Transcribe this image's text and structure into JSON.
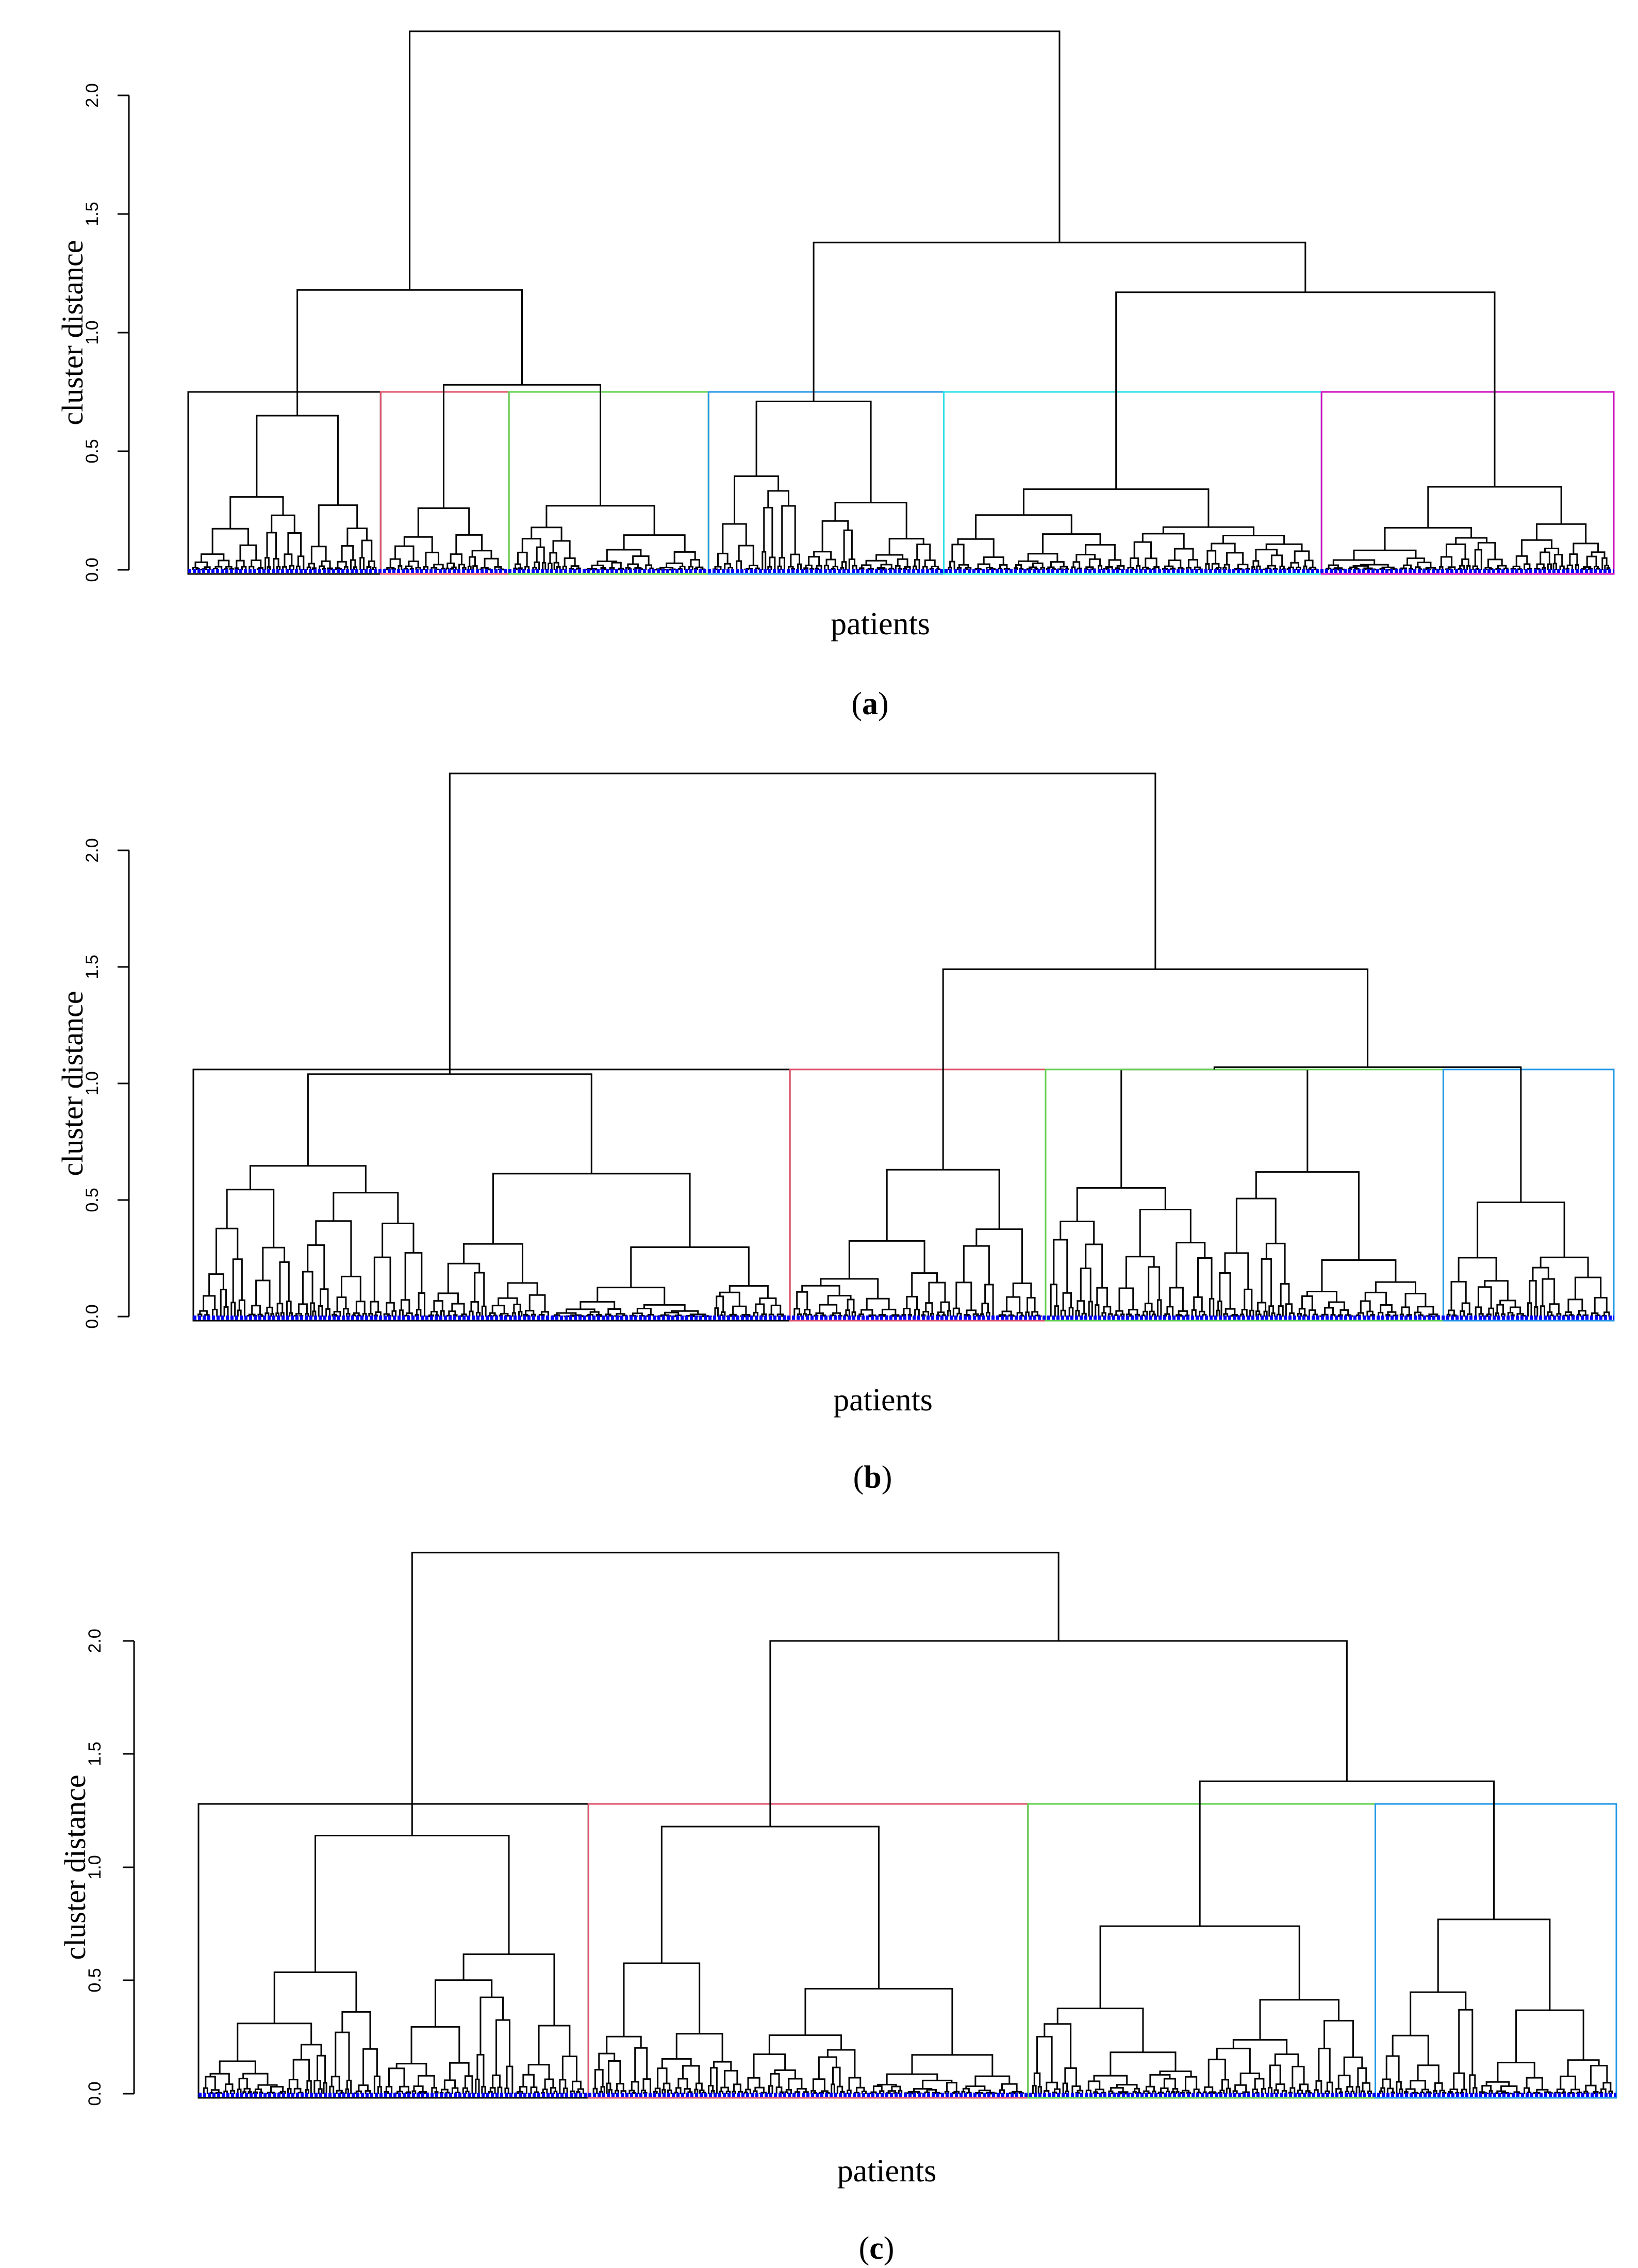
{
  "chart_data": [
    {
      "type": "dendrogram",
      "panel": "a",
      "caption_letter": "a",
      "xlabel": "patients",
      "ylabel": "cluster distance",
      "ylim": [
        0,
        2.0
      ],
      "y_ticks": [
        "0.0",
        "0.5",
        "1.0",
        "1.5",
        "2.0"
      ],
      "root_height": 2.27,
      "cut_height": 0.75,
      "upper_merges": [
        {
          "name": "root",
          "height": 2.27
        },
        {
          "name": "left-group",
          "height": 1.18
        },
        {
          "name": "right-group",
          "height": 1.38
        },
        {
          "name": "right-subgroup",
          "height": 1.17
        },
        {
          "name": "left-subgroup",
          "height": 0.78
        }
      ],
      "clusters": [
        {
          "name": "cluster-1",
          "color": "#000000",
          "width_fraction": 0.135,
          "subtree_height": 0.65
        },
        {
          "name": "cluster-2",
          "color": "#DF536B",
          "width_fraction": 0.09,
          "subtree_height": 0.26
        },
        {
          "name": "cluster-3",
          "color": "#61D04F",
          "width_fraction": 0.14,
          "subtree_height": 0.27
        },
        {
          "name": "cluster-4",
          "color": "#2297E6",
          "width_fraction": 0.165,
          "subtree_height": 0.71
        },
        {
          "name": "cluster-5",
          "color": "#28E2E5",
          "width_fraction": 0.265,
          "subtree_height": 0.34
        },
        {
          "name": "cluster-6",
          "color": "#CD0BBC",
          "width_fraction": 0.205,
          "subtree_height": 0.35
        }
      ]
    },
    {
      "type": "dendrogram",
      "panel": "b",
      "caption_letter": "b",
      "xlabel": "patients",
      "ylabel": "cluster distance",
      "ylim": [
        0,
        2.0
      ],
      "y_ticks": [
        "0.0",
        "0.5",
        "1.0",
        "1.5",
        "2.0"
      ],
      "root_height": 2.33,
      "cut_height": 1.06,
      "upper_merges": [
        {
          "name": "root",
          "height": 2.33
        },
        {
          "name": "right-group",
          "height": 1.49
        },
        {
          "name": "right-subgroup",
          "height": 1.07
        }
      ],
      "clusters": [
        {
          "name": "cluster-1",
          "color": "#000000",
          "width_fraction": 0.42,
          "subtree_height": 1.04
        },
        {
          "name": "cluster-2",
          "color": "#DF536B",
          "width_fraction": 0.18,
          "subtree_height": 0.63
        },
        {
          "name": "cluster-3",
          "color": "#61D04F",
          "width_fraction": 0.28,
          "subtree_height": 1.06
        },
        {
          "name": "cluster-4",
          "color": "#2297E6",
          "width_fraction": 0.12,
          "subtree_height": 0.49
        }
      ]
    },
    {
      "type": "dendrogram",
      "panel": "c",
      "caption_letter": "c",
      "xlabel": "patients",
      "ylabel": "cluster distance",
      "ylim": [
        0,
        2.0
      ],
      "y_ticks": [
        "0.0",
        "0.5",
        "1.0",
        "1.5",
        "2.0"
      ],
      "root_height": 2.39,
      "cut_height": 1.28,
      "upper_merges": [
        {
          "name": "root",
          "height": 2.39
        },
        {
          "name": "right-group",
          "height": 2.0
        },
        {
          "name": "right-subgroup",
          "height": 1.38
        }
      ],
      "clusters": [
        {
          "name": "cluster-1",
          "color": "#000000",
          "width_fraction": 0.275,
          "subtree_height": 1.14
        },
        {
          "name": "cluster-2",
          "color": "#DF536B",
          "width_fraction": 0.31,
          "subtree_height": 1.18
        },
        {
          "name": "cluster-3",
          "color": "#61D04F",
          "width_fraction": 0.245,
          "subtree_height": 0.74
        },
        {
          "name": "cluster-4",
          "color": "#2297E6",
          "width_fraction": 0.17,
          "subtree_height": 0.77
        }
      ]
    }
  ],
  "colors": {
    "tree_line": "#000000",
    "leaf_marks": "#0000FF",
    "background": "#FFFFFF"
  }
}
